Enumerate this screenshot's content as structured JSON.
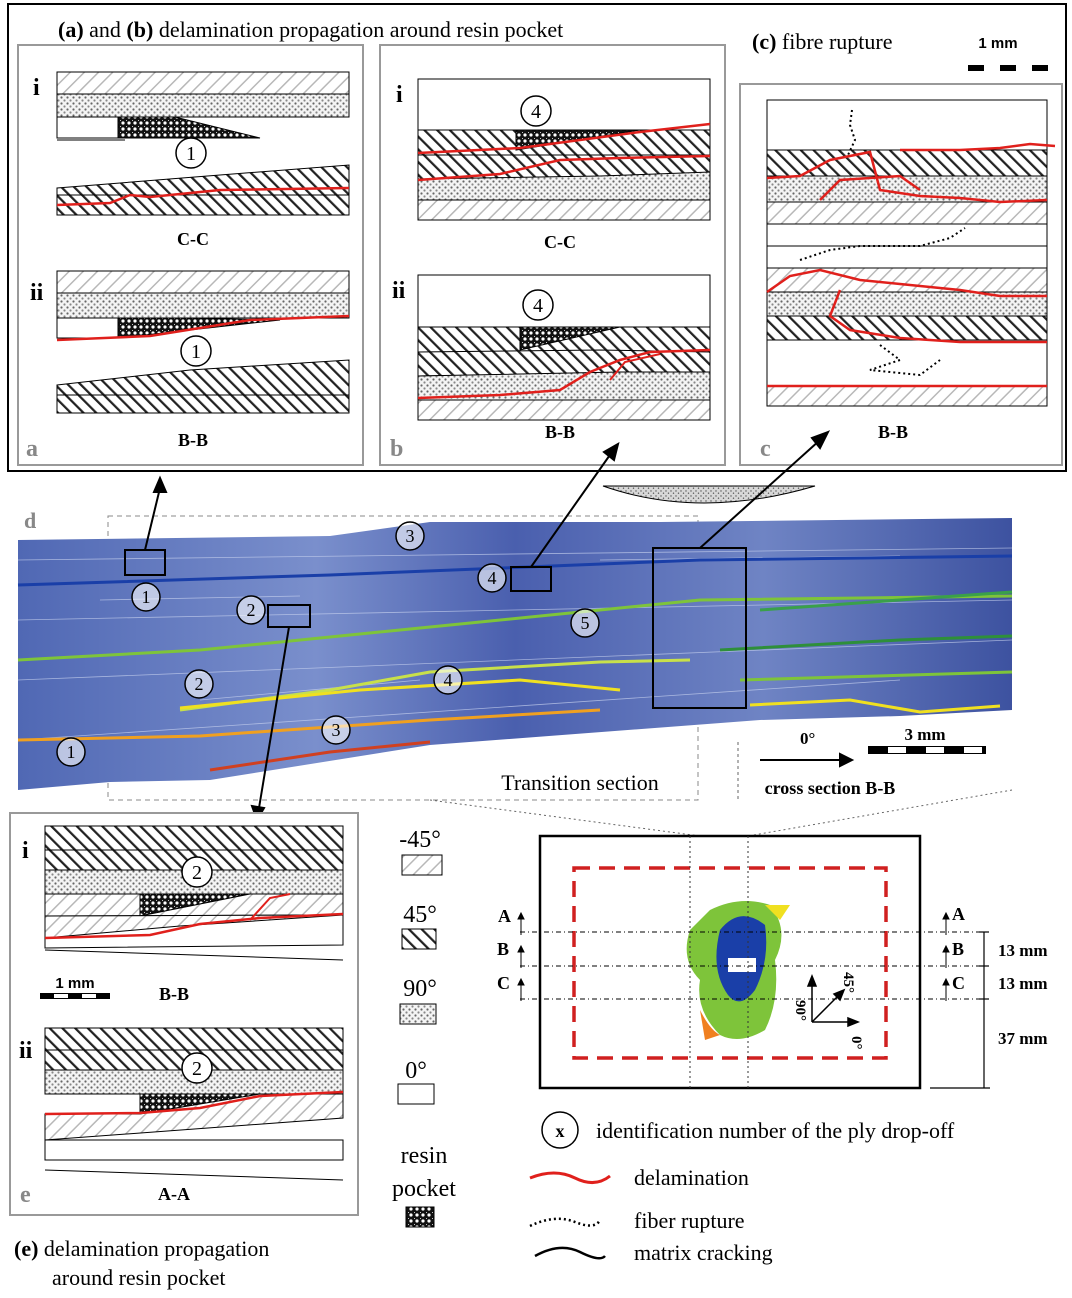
{
  "header": {
    "ab_title": {
      "a": "(a)",
      "and": " and ",
      "b": "(b)",
      "rest": " delamination propagation  around resin pocket"
    },
    "c_title": {
      "c": "(c)",
      "rest": " fibre rupture"
    },
    "scale_top": "1 mm"
  },
  "panels": {
    "a": {
      "letter": "a",
      "sub1": "i",
      "sub2": "ii",
      "cap1": "C-C",
      "cap2": "B-B",
      "num": "1"
    },
    "b": {
      "letter": "b",
      "sub1": "i",
      "sub2": "ii",
      "cap1": "C-C",
      "cap2": "B-B",
      "num": "4"
    },
    "c": {
      "letter": "c",
      "cap": "B-B"
    },
    "d": {
      "letter": "d",
      "transition": "Transition section",
      "cross_section": "cross section B-B",
      "orient": "0°",
      "scale": "3 mm",
      "markers": [
        "1",
        "1",
        "2",
        "2",
        "3",
        "3",
        "4",
        "4",
        "5"
      ]
    },
    "e": {
      "letter": "e",
      "sub1": "i",
      "sub2": "ii",
      "cap1": "B-B",
      "cap2": "A-A",
      "num": "2",
      "scale": "1 mm",
      "caption_bold": "(e)",
      "caption_rest": " delamination propagation",
      "caption_line2": "around resin pocket"
    }
  },
  "ply_legend": {
    "m45": "-45°",
    "p45": "45°",
    "p90": "90°",
    "p0": "0°",
    "resin1": "resin",
    "resin2": "pocket"
  },
  "plate": {
    "labels": [
      "A",
      "B",
      "C"
    ],
    "dims": [
      "13 mm",
      "13 mm",
      "37 mm"
    ],
    "axes": {
      "a90": "90°",
      "a45": "45°",
      "a0": "0°"
    }
  },
  "symbol_legend": {
    "id_symbol": "x",
    "id_text": "identification number  of the ply drop-off",
    "delamination": "delamination",
    "fiber_rupture": "fiber rupture",
    "matrix_cracking": "matrix cracking"
  },
  "colors": {
    "delamination": "#e0201c",
    "micrograph": "#4a5fae",
    "damage_blue": "#1a3fa8",
    "damage_green": "#7ec43a",
    "damage_yellow": "#f0e020",
    "frame_red": "#d02020"
  }
}
